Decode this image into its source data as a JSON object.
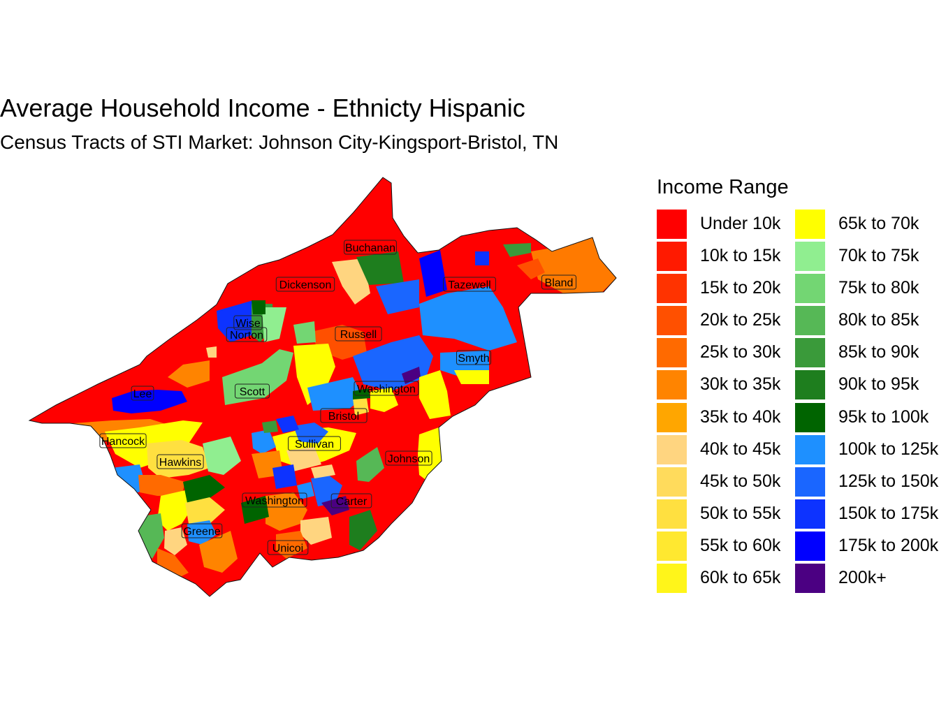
{
  "title": "Average Household Income - Ethnicty Hispanic",
  "subtitle": "Census Tracts of STI Market: Johnson City-Kingsport-Bristol, TN",
  "legend": {
    "title": "Income Range",
    "items": [
      {
        "label": "Under 10k",
        "color": "#ff0000"
      },
      {
        "label": "10k to 15k",
        "color": "#ff1a00"
      },
      {
        "label": "15k to 20k",
        "color": "#ff3300"
      },
      {
        "label": "20k to 25k",
        "color": "#ff5000"
      },
      {
        "label": "25k to 30k",
        "color": "#ff6a00"
      },
      {
        "label": "30k to 35k",
        "color": "#ff8400"
      },
      {
        "label": "35k to 40k",
        "color": "#ffa600"
      },
      {
        "label": "40k to 45k",
        "color": "#ffd580"
      },
      {
        "label": "45k to 50k",
        "color": "#ffdb5c"
      },
      {
        "label": "50k to 55k",
        "color": "#ffe040"
      },
      {
        "label": "55k to 60k",
        "color": "#ffe830"
      },
      {
        "label": "60k to 65k",
        "color": "#fff51a"
      },
      {
        "label": "65k to 70k",
        "color": "#ffff00"
      },
      {
        "label": "70k to 75k",
        "color": "#90ee90"
      },
      {
        "label": "75k to 80k",
        "color": "#73d673"
      },
      {
        "label": "80k to 85k",
        "color": "#56b856"
      },
      {
        "label": "85k to 90k",
        "color": "#3a9a3a"
      },
      {
        "label": "90k to 95k",
        "color": "#1e7e1e"
      },
      {
        "label": "95k to 100k",
        "color": "#006400"
      },
      {
        "label": "100k to 125k",
        "color": "#1e90ff"
      },
      {
        "label": "125k to 150k",
        "color": "#1a66ff"
      },
      {
        "label": "150k to 175k",
        "color": "#0d33ff"
      },
      {
        "label": "175k to 200k",
        "color": "#0000ff"
      },
      {
        "label": "200k+",
        "color": "#4b0082"
      }
    ]
  },
  "counties": [
    "Buchanan",
    "Dickenson",
    "Tazewell",
    "Bland",
    "Wise",
    "Norton",
    "Russell",
    "Smyth",
    "Lee",
    "Scott",
    "Washington",
    "Bristol",
    "Hancock",
    "Sullivan",
    "Johnson",
    "Hawkins",
    "Washington",
    "Carter",
    "Greene",
    "Unicoi"
  ]
}
